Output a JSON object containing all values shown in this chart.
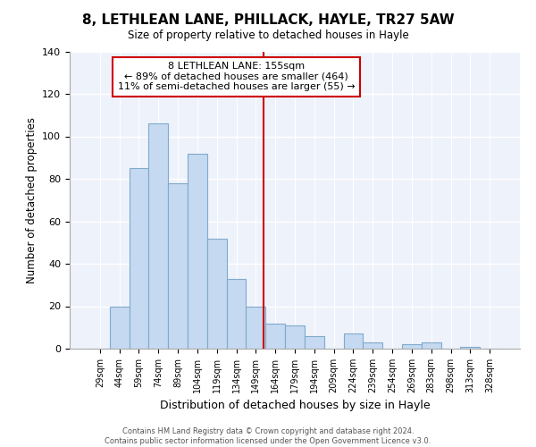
{
  "title": "8, LETHLEAN LANE, PHILLACK, HAYLE, TR27 5AW",
  "subtitle": "Size of property relative to detached houses in Hayle",
  "xlabel": "Distribution of detached houses by size in Hayle",
  "ylabel": "Number of detached properties",
  "bar_labels": [
    "29sqm",
    "44sqm",
    "59sqm",
    "74sqm",
    "89sqm",
    "104sqm",
    "119sqm",
    "134sqm",
    "149sqm",
    "164sqm",
    "179sqm",
    "194sqm",
    "209sqm",
    "224sqm",
    "239sqm",
    "254sqm",
    "269sqm",
    "283sqm",
    "298sqm",
    "313sqm",
    "328sqm"
  ],
  "bar_values": [
    0,
    20,
    85,
    106,
    78,
    92,
    52,
    33,
    20,
    12,
    11,
    6,
    0,
    7,
    3,
    0,
    2,
    3,
    0,
    1,
    0
  ],
  "bar_color": "#c5d9f0",
  "bar_edge_color": "#7faacc",
  "annotation_line_color": "#cc0000",
  "annotation_box_text": "8 LETHLEAN LANE: 155sqm\n← 89% of detached houses are smaller (464)\n11% of semi-detached houses are larger (55) →",
  "ylim": [
    0,
    140
  ],
  "yticks": [
    0,
    20,
    40,
    60,
    80,
    100,
    120,
    140
  ],
  "footer_line1": "Contains HM Land Registry data © Crown copyright and database right 2024.",
  "footer_line2": "Contains public sector information licensed under the Open Government Licence v3.0.",
  "bg_color": "#ffffff",
  "plot_bg_color": "#eef2fb",
  "grid_color": "#ffffff"
}
